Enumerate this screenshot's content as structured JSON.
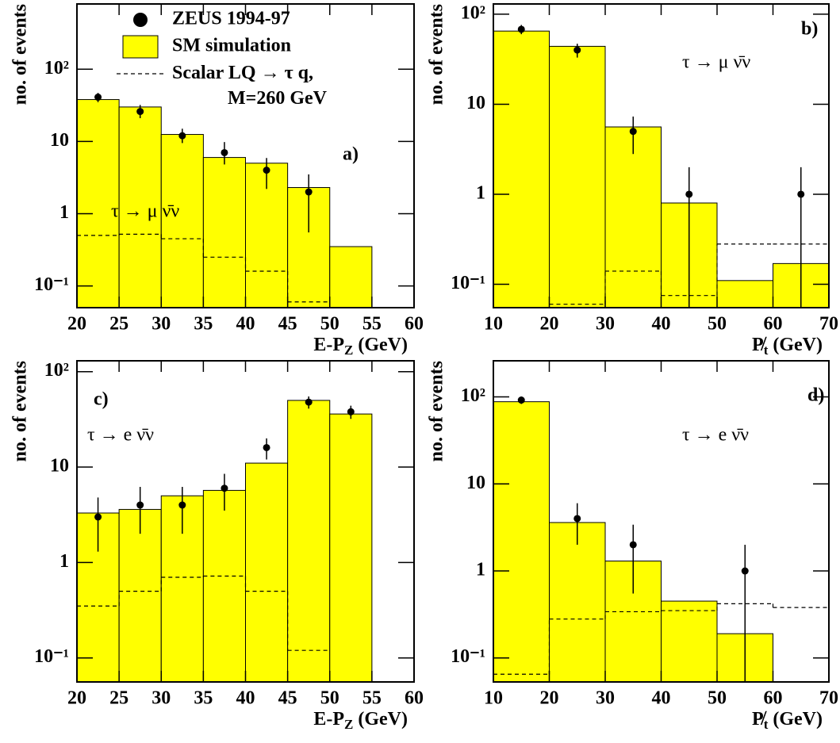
{
  "chart_data": [
    {
      "type": "histogram",
      "ylabel": "no. of events",
      "xlabel": {
        "main": "E-P",
        "sub": "Z",
        "unit": " (GeV)"
      },
      "log_y": true,
      "xlim": [
        20,
        60
      ],
      "xticks": [
        20,
        25,
        30,
        35,
        40,
        45,
        50,
        55,
        60
      ],
      "ylim": [
        0.05,
        800
      ],
      "yticks": [
        {
          "value": 0.1,
          "label": "10⁻¹"
        },
        1,
        10,
        {
          "value": 100,
          "label": "10²"
        }
      ],
      "bins": [
        20,
        25,
        30,
        35,
        40,
        45,
        50,
        55
      ],
      "legend": true,
      "series": [
        {
          "name": "SM simulation",
          "style": "filled",
          "color": "#ffff00",
          "values": [
            38,
            30,
            12.5,
            6,
            5,
            2.3,
            0.35
          ]
        },
        {
          "name": "Scalar LQ → τ q, M=260 GeV",
          "style": "dashed",
          "color": "#000000",
          "values": [
            0.5,
            0.52,
            0.45,
            0.25,
            0.16,
            0.06,
            null
          ]
        },
        {
          "name": "ZEUS 1994-97",
          "style": "points",
          "color": "#000000",
          "x": [
            22.5,
            27.5,
            32.5,
            37.5,
            42.5,
            47.5
          ],
          "values": [
            41,
            26,
            12,
            7,
            4,
            2
          ],
          "ylow": [
            35,
            21,
            9.5,
            4.8,
            2.2,
            0.55
          ],
          "yhigh": [
            47,
            32,
            15,
            9.8,
            5.9,
            3.5
          ]
        }
      ],
      "annotations": [
        "a)",
        "τ → μ ν̄ν"
      ]
    },
    {
      "type": "histogram",
      "ylabel": "no. of events",
      "xlabel": {
        "main": "P̸",
        "sub": "t",
        "unit": " (GeV)"
      },
      "log_y": true,
      "xlim": [
        10,
        70
      ],
      "xticks": [
        10,
        20,
        30,
        40,
        50,
        60,
        70
      ],
      "ylim": [
        0.055,
        130
      ],
      "yticks": [
        {
          "value": 0.1,
          "label": "10⁻¹"
        },
        1,
        10,
        {
          "value": 100,
          "label": "10²"
        }
      ],
      "bins": [
        10,
        20,
        30,
        40,
        50,
        60,
        70
      ],
      "legend": false,
      "series": [
        {
          "style": "filled",
          "color": "#ffff00",
          "values": [
            65,
            44,
            5.6,
            0.8,
            0.11,
            0.17
          ]
        },
        {
          "style": "dashed",
          "color": "#000000",
          "values": [
            null,
            0.06,
            0.14,
            0.075,
            0.28,
            0.28
          ]
        },
        {
          "style": "points",
          "color": "#000000",
          "x": [
            15,
            25,
            35,
            45,
            65
          ],
          "values": [
            68,
            40,
            5,
            1,
            1
          ],
          "ylow": [
            60,
            33,
            2.8,
            0.055,
            0.055
          ],
          "yhigh": [
            76,
            47,
            7.3,
            2,
            2
          ]
        }
      ],
      "annotations": [
        "b)",
        "τ → μ ν̄ν"
      ]
    },
    {
      "type": "histogram",
      "ylabel": "no. of events",
      "xlabel": {
        "main": "E-P",
        "sub": "Z",
        "unit": " (GeV)"
      },
      "log_y": true,
      "xlim": [
        20,
        60
      ],
      "xticks": [
        20,
        25,
        30,
        35,
        40,
        45,
        50,
        55,
        60
      ],
      "ylim": [
        0.056,
        130
      ],
      "yticks": [
        {
          "value": 0.1,
          "label": "10⁻¹"
        },
        1,
        10,
        {
          "value": 100,
          "label": "10²"
        }
      ],
      "bins": [
        20,
        25,
        30,
        35,
        40,
        45,
        50,
        55
      ],
      "legend": false,
      "series": [
        {
          "style": "filled",
          "color": "#ffff00",
          "values": [
            3.3,
            3.6,
            5,
            5.7,
            11,
            50,
            36
          ]
        },
        {
          "style": "dashed",
          "color": "#000000",
          "values": [
            0.35,
            0.5,
            0.7,
            0.72,
            0.5,
            0.12,
            null
          ]
        },
        {
          "style": "points",
          "color": "#000000",
          "x": [
            22.5,
            27.5,
            32.5,
            37.5,
            42.5,
            47.5,
            52.5
          ],
          "values": [
            3,
            4,
            4,
            6,
            16,
            48,
            38
          ],
          "ylow": [
            1.3,
            2,
            2,
            3.5,
            12,
            41,
            32
          ],
          "yhigh": [
            4.8,
            6.2,
            6.2,
            8.5,
            20,
            55,
            44
          ]
        }
      ],
      "annotations": [
        "c)",
        "τ → e ν̄ν"
      ]
    },
    {
      "type": "histogram",
      "ylabel": "no. of events",
      "xlabel": {
        "main": "P̸",
        "sub": "t",
        "unit": " (GeV)"
      },
      "log_y": true,
      "xlim": [
        10,
        70
      ],
      "xticks": [
        10,
        20,
        30,
        40,
        50,
        60,
        70
      ],
      "ylim": [
        0.053,
        260
      ],
      "yticks": [
        {
          "value": 0.1,
          "label": "10⁻¹"
        },
        1,
        10,
        {
          "value": 100,
          "label": "10²"
        }
      ],
      "bins": [
        10,
        20,
        30,
        40,
        50,
        60,
        70
      ],
      "legend": false,
      "series": [
        {
          "style": "filled",
          "color": "#ffff00",
          "values": [
            88,
            3.6,
            1.3,
            0.45,
            0.19,
            null
          ]
        },
        {
          "style": "dashed",
          "color": "#000000",
          "values": [
            0.065,
            0.28,
            0.34,
            0.35,
            0.42,
            0.38
          ]
        },
        {
          "style": "points",
          "color": "#000000",
          "x": [
            15,
            25,
            35,
            55
          ],
          "values": [
            92,
            4,
            2,
            1
          ],
          "ylow": [
            83,
            2,
            0.55,
            0.053
          ],
          "yhigh": [
            101,
            6,
            3.4,
            2
          ]
        }
      ],
      "annotations": [
        "d)",
        "τ → e ν̄ν"
      ]
    }
  ]
}
